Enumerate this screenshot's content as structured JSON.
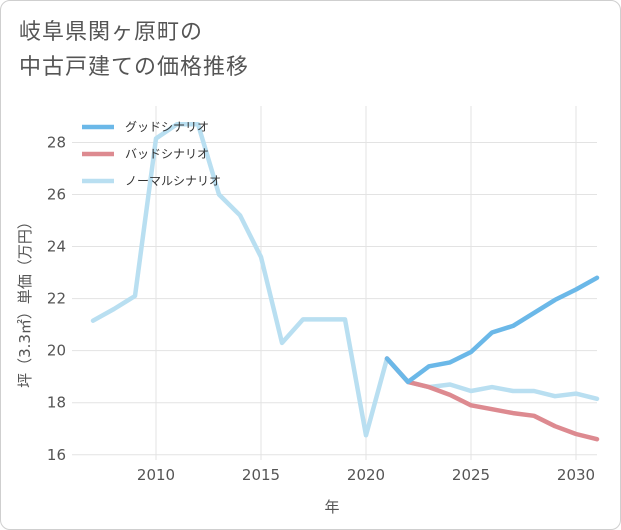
{
  "title_lines": [
    "岐阜県関ヶ原町の",
    "中古戸建ての価格推移"
  ],
  "chart_data": {
    "type": "line",
    "title": "岐阜県関ヶ原町の中古戸建ての価格推移",
    "xlabel": "年",
    "ylabel": "坪（3.3㎡）単価（万円）",
    "xlim": [
      2006,
      2031
    ],
    "ylim": [
      15.8,
      29.4
    ],
    "xticks": [
      2010,
      2015,
      2020,
      2025,
      2030
    ],
    "yticks": [
      16,
      18,
      20,
      22,
      24,
      26,
      28
    ],
    "grid": true,
    "legend_position": "top-left",
    "series": [
      {
        "name": "グッドシナリオ",
        "color": "#6bb8e8",
        "x": [
          2021,
          2022,
          2023,
          2024,
          2025,
          2026,
          2027,
          2028,
          2029,
          2030,
          2031
        ],
        "y": [
          19.7,
          18.8,
          19.4,
          19.55,
          19.95,
          20.7,
          20.95,
          21.45,
          21.95,
          22.35,
          22.8
        ]
      },
      {
        "name": "バッドシナリオ",
        "color": "#dd8a90",
        "x": [
          2021,
          2022,
          2023,
          2024,
          2025,
          2026,
          2027,
          2028,
          2029,
          2030,
          2031
        ],
        "y": [
          19.7,
          18.8,
          18.6,
          18.3,
          17.9,
          17.75,
          17.6,
          17.5,
          17.1,
          16.8,
          16.6
        ]
      },
      {
        "name": "ノーマルシナリオ",
        "color": "#b9dff1",
        "x": [
          2007,
          2008,
          2009,
          2010,
          2011,
          2012,
          2013,
          2014,
          2015,
          2016,
          2017,
          2018,
          2019,
          2020,
          2021,
          2022,
          2023,
          2024,
          2025,
          2026,
          2027,
          2028,
          2029,
          2030,
          2031
        ],
        "y": [
          21.15,
          21.6,
          22.1,
          28.15,
          28.7,
          28.7,
          26.0,
          25.2,
          23.6,
          20.3,
          21.2,
          21.2,
          21.2,
          16.75,
          19.7,
          18.8,
          18.6,
          18.7,
          18.45,
          18.6,
          18.45,
          18.45,
          18.25,
          18.35,
          18.15
        ]
      }
    ]
  }
}
